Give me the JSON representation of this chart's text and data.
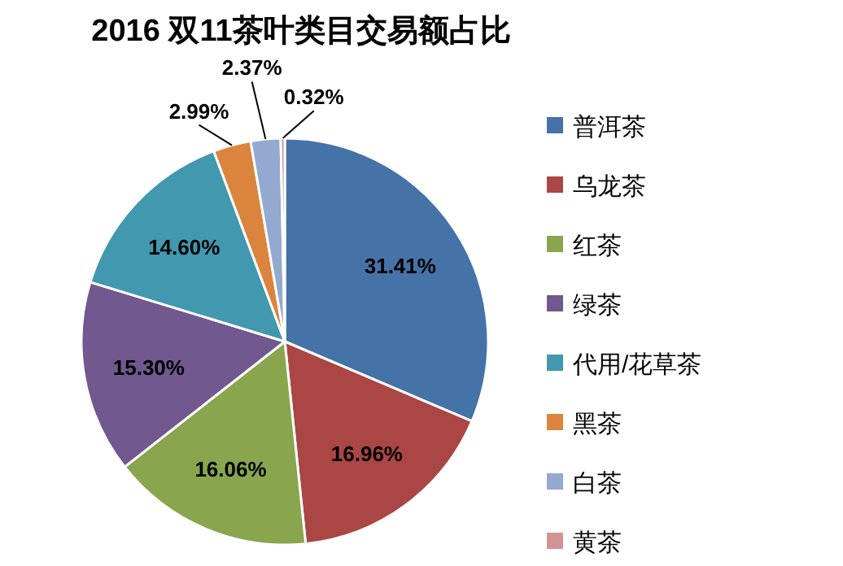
{
  "chart_data": {
    "type": "pie",
    "title": "2016 双11茶叶类目交易额占比",
    "categories": [
      "普洱茶",
      "乌龙茶",
      "红茶",
      "绿茶",
      "代用/花草茶",
      "黑茶",
      "白茶",
      "黄茶"
    ],
    "values": [
      31.41,
      16.96,
      16.06,
      15.3,
      14.6,
      2.99,
      2.37,
      0.32
    ],
    "value_labels": [
      "31.41%",
      "16.96%",
      "16.06%",
      "15.30%",
      "14.60%",
      "2.99%",
      "2.37%",
      "0.32%"
    ],
    "colors": [
      "#4572a7",
      "#aa4643",
      "#89a54e",
      "#71588f",
      "#4198af",
      "#db843d",
      "#93a9cf",
      "#d19392"
    ],
    "legend": "right"
  }
}
